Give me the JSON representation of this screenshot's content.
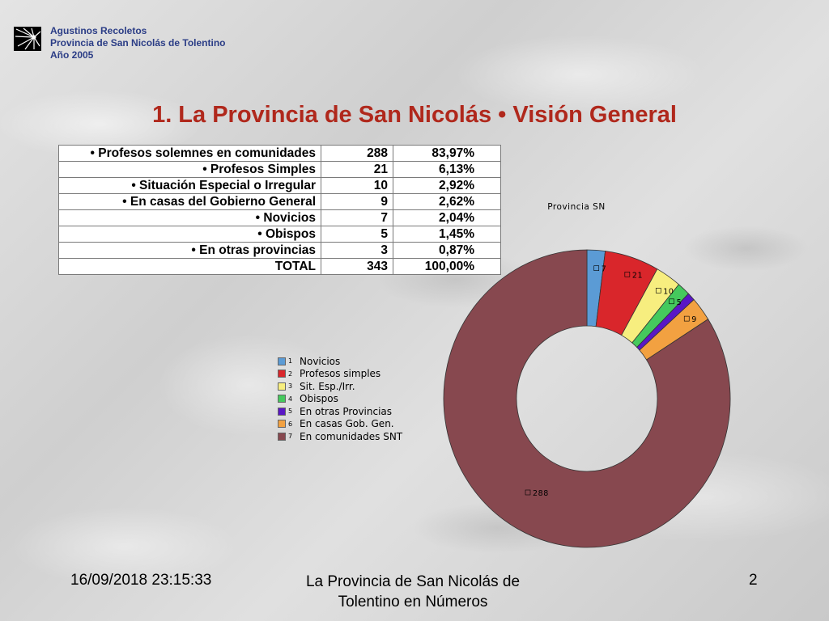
{
  "header": {
    "line1": "Agustinos Recoletos",
    "line2": "Provincia de San Nicolás de Tolentino",
    "line3": "Año 2005",
    "logo_icon": "starburst-logo-icon"
  },
  "slide_title": "1. La Provincia de San Nicolás • Visión General",
  "table": {
    "rows": [
      {
        "label": "• Profesos solemnes en comunidades",
        "count": "288",
        "percent": "83,97%"
      },
      {
        "label": "• Profesos Simples",
        "count": "21",
        "percent": "6,13%"
      },
      {
        "label": "• Situación Especial o Irregular",
        "count": "10",
        "percent": "2,92%"
      },
      {
        "label": "• En casas del Gobierno General",
        "count": "9",
        "percent": "2,62%"
      },
      {
        "label": "• Novicios",
        "count": "7",
        "percent": "2,04%"
      },
      {
        "label": "• Obispos",
        "count": "5",
        "percent": "1,45%"
      },
      {
        "label": "• En otras provincias",
        "count": "3",
        "percent": "0,87%"
      },
      {
        "label": "TOTAL",
        "count": "343",
        "percent": "100,00%"
      }
    ]
  },
  "chart_data": {
    "type": "pie",
    "style": "doughnut",
    "title": "Provincia SN",
    "legend_position": "left",
    "categories": [
      "Novicios",
      "Profesos simples",
      "Sit. Esp./Irr.",
      "Obispos",
      "En otras Provincias",
      "En casas Gob. Gen.",
      "En comunidades SNT"
    ],
    "legend_numbers": [
      "1",
      "2",
      "3",
      "4",
      "5",
      "6",
      "7"
    ],
    "values": [
      7,
      21,
      10,
      5,
      3,
      9,
      288
    ],
    "data_labels": [
      "7",
      "21",
      "10",
      "5",
      "",
      "9",
      "288"
    ],
    "colors": [
      "#5b9bd5",
      "#d9262b",
      "#f7ee7f",
      "#45c95d",
      "#5a17c5",
      "#f2a141",
      "#87484f"
    ]
  },
  "footer": {
    "date": "16/09/2018 23:15:33",
    "center": "La Provincia de San Nicolás de Tolentino en Números",
    "page": "2"
  }
}
